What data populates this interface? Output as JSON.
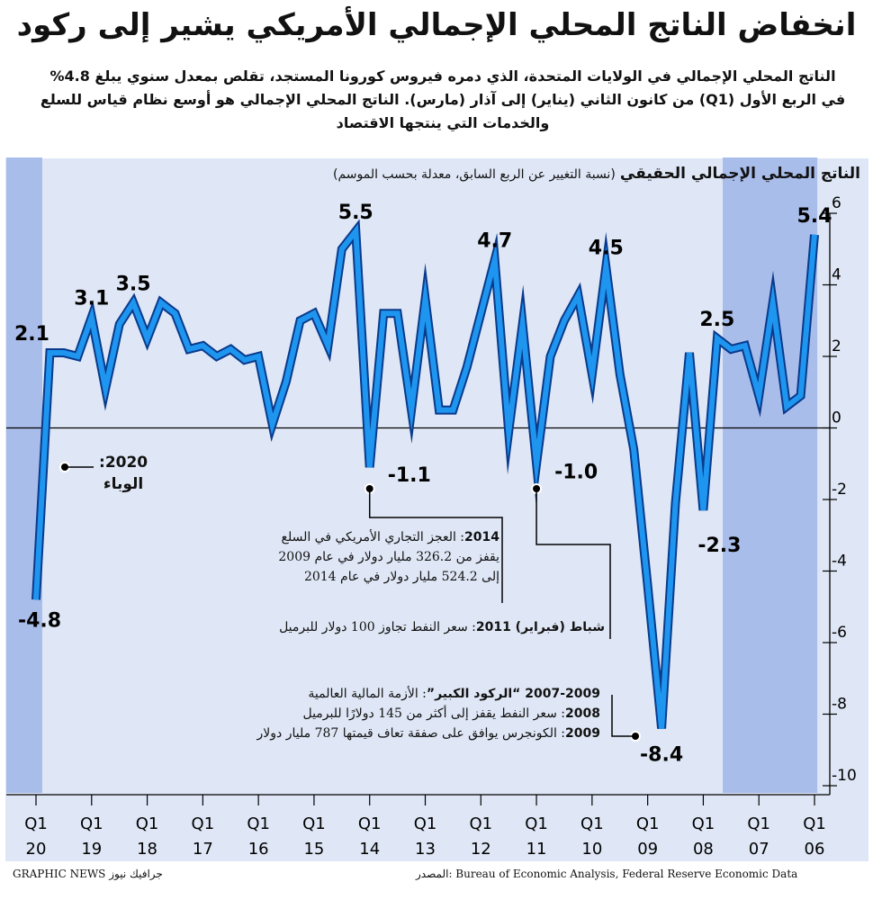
{
  "header": {
    "title": "انخفاض الناتج المحلي الإجمالي الأمريكي يشير إلى ركود",
    "intro": "الناتج المحلي الإجمالي في الولايات المتحدة، الذي دمره فيروس كورونا المستجد، تقلص بمعدل سنوي يبلغ 4.8% في الربع الأول (Q1) من كانون الثاني (يناير) إلى آذار (مارس). الناتج المحلي الإجمالي هو أوسع نظام قياس للسلع والخدمات التي ينتجها الاقتصاد"
  },
  "chart_data": {
    "type": "line",
    "title": "الناتج المحلي الإجمالي الحقيقي",
    "subtitle": "(نسبة التغيير عن الربع السابق، معدلة بحسب الموسم)",
    "x_axis_direction": "right-to-left (oldest at right)",
    "ylim": [
      -10,
      6
    ],
    "yticks": [
      "6",
      "4",
      "2",
      "0",
      "-2",
      "-4",
      "-6",
      "-8",
      "-10"
    ],
    "ytick_values": [
      6,
      4,
      2,
      0,
      -2,
      -4,
      -6,
      -8,
      -10
    ],
    "xticks": [
      {
        "q": "Q1",
        "y": "20"
      },
      {
        "q": "Q1",
        "y": "19"
      },
      {
        "q": "Q1",
        "y": "18"
      },
      {
        "q": "Q1",
        "y": "17"
      },
      {
        "q": "Q1",
        "y": "16"
      },
      {
        "q": "Q1",
        "y": "15"
      },
      {
        "q": "Q1",
        "y": "14"
      },
      {
        "q": "Q1",
        "y": "13"
      },
      {
        "q": "Q1",
        "y": "12"
      },
      {
        "q": "Q1",
        "y": "11"
      },
      {
        "q": "Q1",
        "y": "10"
      },
      {
        "q": "Q1",
        "y": "09"
      },
      {
        "q": "Q1",
        "y": "08"
      },
      {
        "q": "Q1",
        "y": "07"
      },
      {
        "q": "Q1",
        "y": "06"
      }
    ],
    "series_quarter_labels_oldest_first": [
      "2006Q1",
      "2006Q2",
      "2006Q3",
      "2006Q4",
      "2007Q1",
      "2007Q2",
      "2007Q3",
      "2007Q4",
      "2008Q1",
      "2008Q2",
      "2008Q3",
      "2008Q4",
      "2009Q1",
      "2009Q2",
      "2009Q3",
      "2009Q4",
      "2010Q1",
      "2010Q2",
      "2010Q3",
      "2010Q4",
      "2011Q1",
      "2011Q2",
      "2011Q3",
      "2011Q4",
      "2012Q1",
      "2012Q2",
      "2012Q3",
      "2012Q4",
      "2013Q1",
      "2013Q2",
      "2013Q3",
      "2013Q4",
      "2014Q1",
      "2014Q2",
      "2014Q3",
      "2014Q4",
      "2015Q1",
      "2015Q2",
      "2015Q3",
      "2015Q4",
      "2016Q1",
      "2016Q2",
      "2016Q3",
      "2016Q4",
      "2017Q1",
      "2017Q2",
      "2017Q3",
      "2017Q4",
      "2018Q1",
      "2018Q2",
      "2018Q3",
      "2018Q4",
      "2019Q1",
      "2019Q2",
      "2019Q3",
      "2019Q4",
      "2020Q1"
    ],
    "values_oldest_first": [
      5.4,
      0.9,
      0.6,
      3.5,
      0.9,
      2.3,
      2.2,
      2.5,
      -2.3,
      2.1,
      -2.1,
      -8.4,
      -4.4,
      -0.6,
      1.5,
      4.5,
      1.5,
      3.7,
      3.0,
      2.0,
      -1.0,
      2.9,
      -0.1,
      4.7,
      3.2,
      1.7,
      0.5,
      0.5,
      3.6,
      0.5,
      3.2,
      3.2,
      -1.1,
      5.5,
      5.0,
      2.3,
      3.2,
      3.0,
      1.3,
      0.1,
      2.0,
      1.9,
      2.2,
      2.0,
      2.3,
      2.2,
      3.2,
      3.5,
      2.5,
      3.5,
      2.9,
      1.1,
      3.1,
      2.0,
      2.1,
      2.1,
      -4.8
    ],
    "series_color": "#1e96f0",
    "data_labels": [
      {
        "text": "2.1",
        "i": 55
      },
      {
        "text": "3.1",
        "i": 52
      },
      {
        "text": "3.5",
        "i": 49
      },
      {
        "text": "5.5",
        "i": 33
      },
      {
        "text": "4.7",
        "i": 23
      },
      {
        "text": "4.5",
        "i": 15
      },
      {
        "text": "2.5",
        "i": 7
      },
      {
        "text": "5.4",
        "i": 0
      },
      {
        "text": "-1.1",
        "i": 32
      },
      {
        "text": "-1.0",
        "i": 20
      },
      {
        "text": "-2.3",
        "i": 8
      },
      {
        "text": "-8.4",
        "i": 11
      },
      {
        "text": "-4.8",
        "i": 56
      }
    ],
    "shaded_periods": [
      "2020 Q1",
      "2007-2009"
    ],
    "shade_color": "#a9bdea",
    "grid": false
  },
  "annotations": {
    "pandemic": {
      "year": "2020:",
      "label": "الوباء"
    },
    "trade": {
      "year": "2014",
      "line1": ": العجز التجاري الأمريكي في السلع",
      "line2": "يقفز من 326.2 مليار دولار في عام 2009",
      "line3": "إلى 524.2 مليار دولار في عام 2014"
    },
    "oil2011": {
      "year": "شباط (فبراير) 2011",
      "text": ": سعر النفط تجاوز 100 دولار للبرميل"
    },
    "recession": {
      "year": "2007-2009",
      "bold": " “الركود الكبير”",
      "text": ": الأزمة المالية العالمية",
      "y2008": "2008",
      "t2008": ": سعر النفط يقفز إلى أكثر من 145 دولارًا للبرميل",
      "y2009": "2009",
      "t2009": ": الكونجرس يوافق على صفقة تعاف قيمتها 787 مليار دولار"
    }
  },
  "footer": {
    "source": "المصدر: Bureau of Economic Analysis, Federal Reserve Economic Data",
    "credit": "GRAPHIC NEWS جرافيك نيوز"
  }
}
